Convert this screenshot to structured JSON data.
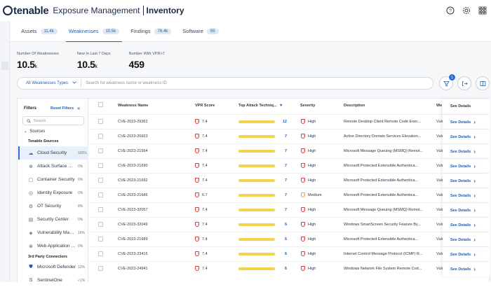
{
  "brand": {
    "logo": "tenable",
    "product": "Exposure Management",
    "section": "Inventory"
  },
  "top_icons": [
    "help-icon",
    "settings-icon",
    "apps-grid-icon"
  ],
  "tabs": [
    {
      "label": "Assets",
      "count": "11.4k"
    },
    {
      "label": "Weaknesses",
      "count": "10.5k"
    },
    {
      "label": "Findings",
      "count": "76.4k"
    },
    {
      "label": "Software",
      "count": "55"
    }
  ],
  "stats": [
    {
      "label": "Number Of Weaknesses",
      "value": "10.5",
      "suffix": "k"
    },
    {
      "label": "New In Last 7 Days",
      "value": "10.5",
      "suffix": "k"
    },
    {
      "label": "Number With VPR>7",
      "value": "459",
      "suffix": ""
    }
  ],
  "search": {
    "type_label": "All Weaknesses Types",
    "placeholder": "Search for weakness name or weakness ID"
  },
  "filter_badge": "1",
  "filters": {
    "title": "Filters",
    "reset": "Reset Filters",
    "search_placeholder": "Search",
    "sources_label": "Sources",
    "tenable_group": "Tenable Sources",
    "third_party_group": "3rd Party Connectors",
    "tenable_items": [
      {
        "name": "Cloud Security",
        "pct": "100%",
        "icon": "cloud-icon"
      },
      {
        "name": "Attack Surface Management",
        "pct": "0%",
        "icon": "attack-surface-icon"
      },
      {
        "name": "Container Security",
        "pct": "0%",
        "icon": "container-icon"
      },
      {
        "name": "Identity Exposure",
        "pct": "0%",
        "icon": "identity-icon"
      },
      {
        "name": "OT Security",
        "pct": "8%",
        "icon": "ot-icon"
      },
      {
        "name": "Security Center",
        "pct": "0%",
        "icon": "security-center-icon"
      },
      {
        "name": "Vulnerability Management",
        "pct": "16%",
        "icon": "vulnerability-icon"
      },
      {
        "name": "Web Application Scanning",
        "pct": "0%",
        "icon": "web-app-icon"
      }
    ],
    "third_party_items": [
      {
        "name": "Microsoft Defender",
        "pct": "12%",
        "icon": "microsoft-defender-icon"
      },
      {
        "name": "SentinelOne",
        "pct": "<1%",
        "icon": "sentinelone-icon"
      }
    ]
  },
  "table": {
    "columns": {
      "name": "Weakness Name",
      "vpr": "VPR Score",
      "attack": "Top Attack Techniq...",
      "severity": "Severity",
      "description": "Description",
      "vendor": "We",
      "details": "See Details"
    },
    "see_details": "See Details",
    "rows": [
      {
        "name": "CVE-2023-29362",
        "vpr": "7.4",
        "attack": "12",
        "severity": "High",
        "description": "Remote Desktop Client Remote Code Exec...",
        "vendor": "Vuln"
      },
      {
        "name": "CVE-2023-26923",
        "vpr": "7.4",
        "attack": "7",
        "severity": "High",
        "description": "Active Directory Domain Services Elevation...",
        "vendor": "Vuln"
      },
      {
        "name": "CVE-2023-21554",
        "vpr": "7.4",
        "attack": "7",
        "severity": "High",
        "description": "Microsoft Message Queuing (MSMQ) Remot...",
        "vendor": "Vuln"
      },
      {
        "name": "CVE-2023-21690",
        "vpr": "7.4",
        "attack": "7",
        "severity": "High",
        "description": "Microsoft Protected Extensible Authentica...",
        "vendor": "Vuln"
      },
      {
        "name": "CVE-2023-21692",
        "vpr": "7.4",
        "attack": "7",
        "severity": "High",
        "description": "Microsoft Protected Extensible Authentica...",
        "vendor": "Vuln"
      },
      {
        "name": "CVE-2023-21686",
        "vpr": "6.7",
        "attack": "7",
        "severity": "Medium",
        "description": "Microsoft Protected Extensible Authentica...",
        "vendor": "Vuln"
      },
      {
        "name": "CVE-2023-32057",
        "vpr": "7.4",
        "attack": "7",
        "severity": "High",
        "description": "Microsoft Message Queuing (MSMQ) Remot...",
        "vendor": "Vuln"
      },
      {
        "name": "CVE-2023-32049",
        "vpr": "7.4",
        "attack": "6",
        "severity": "High",
        "description": "Windows SmartScreen Security Feature By...",
        "vendor": "Vuln"
      },
      {
        "name": "CVE-2023-21689",
        "vpr": "7.4",
        "attack": "6",
        "severity": "High",
        "description": "Microsoft Protected Extensible Authentica...",
        "vendor": "Vuln"
      },
      {
        "name": "CVE-2023-23415",
        "vpr": "7.4",
        "attack": "6",
        "severity": "High",
        "description": "Internet Control Message Protocol (ICMP) R...",
        "vendor": "Vuln"
      },
      {
        "name": "CVE-2023-24941",
        "vpr": "7.4",
        "attack": "6",
        "severity": "High",
        "description": "Windows Network File System Remote Cod...",
        "vendor": "Vuln"
      }
    ]
  }
}
